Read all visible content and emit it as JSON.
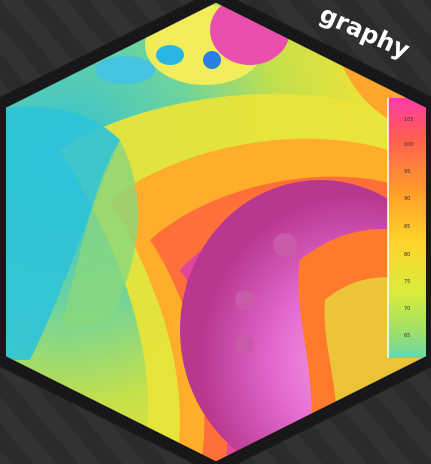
{
  "badge": {
    "title_fragment": "graphy",
    "colors": {
      "background": "#2b2b2e",
      "border": "#18181a",
      "stripe": "#333336"
    }
  },
  "thermal_scale": {
    "labels": [
      "105",
      "100",
      "95",
      "90",
      "85",
      "80",
      "75",
      "70",
      "65"
    ]
  }
}
